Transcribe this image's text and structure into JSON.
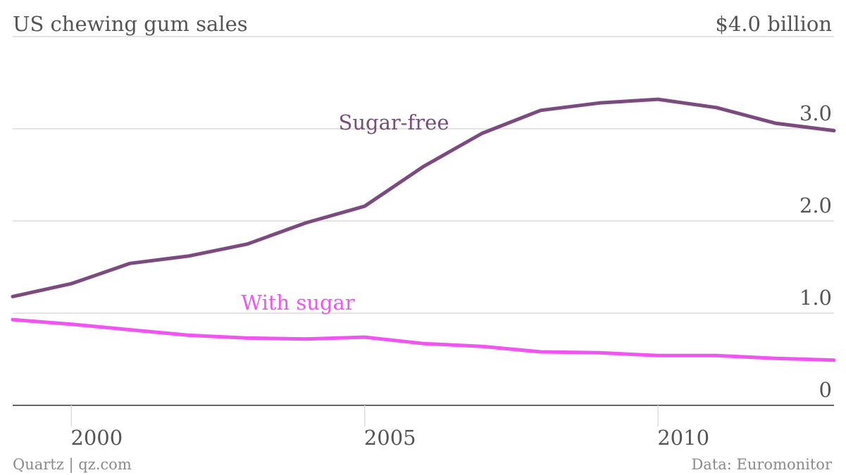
{
  "chart_data": {
    "type": "line",
    "title": "US chewing gum sales",
    "unit_top_label": "$4.0 billion",
    "source": "Data: Euromonitor",
    "credit": "Quartz | qz.com",
    "x": [
      1999,
      2000,
      2001,
      2002,
      2003,
      2004,
      2005,
      2006,
      2007,
      2008,
      2009,
      2010,
      2011,
      2012,
      2013
    ],
    "series": [
      {
        "name": "Sugar-free",
        "color": "#7b4a7f",
        "values": [
          1.18,
          1.32,
          1.54,
          1.62,
          1.75,
          1.98,
          2.16,
          2.59,
          2.95,
          3.2,
          3.28,
          3.32,
          3.23,
          3.06,
          2.98
        ]
      },
      {
        "name": "With sugar",
        "color": "#ef55ef",
        "values": [
          0.93,
          0.88,
          0.82,
          0.76,
          0.73,
          0.72,
          0.74,
          0.67,
          0.64,
          0.58,
          0.57,
          0.54,
          0.54,
          0.51,
          0.49
        ]
      }
    ],
    "xticks": [
      2000,
      2005,
      2010
    ],
    "xtick_labels": [
      "2000",
      "2005",
      "2010"
    ],
    "yticks": [
      0,
      1,
      2,
      3,
      4
    ],
    "ytick_labels": [
      "0",
      "1.0",
      "2.0",
      "3.0",
      "$4.0 billion"
    ],
    "xlim": [
      1999,
      2013
    ],
    "ylim": [
      0,
      4
    ],
    "grid": true,
    "legend": "inline labels"
  }
}
